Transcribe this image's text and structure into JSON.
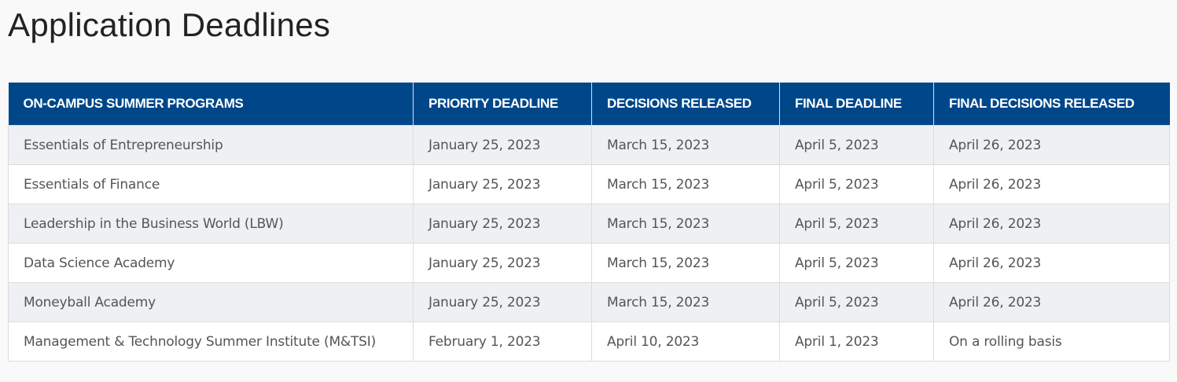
{
  "title": "Application Deadlines",
  "colors": {
    "header_bg": "#00478a",
    "stripe": "#eef0f3"
  },
  "table": {
    "headers": [
      "ON-CAMPUS SUMMER PROGRAMS",
      "PRIORITY DEADLINE",
      "DECISIONS RELEASED",
      "FINAL DEADLINE",
      "FINAL DECISIONS RELEASED"
    ],
    "rows": [
      [
        "Essentials of Entrepreneurship",
        "January 25, 2023",
        "March 15, 2023",
        "April 5, 2023",
        "April 26, 2023"
      ],
      [
        "Essentials of Finance",
        "January 25, 2023",
        "March 15, 2023",
        "April 5, 2023",
        "April 26, 2023"
      ],
      [
        "Leadership in the Business World (LBW)",
        "January 25, 2023",
        "March 15, 2023",
        "April 5, 2023",
        "April 26, 2023"
      ],
      [
        "Data Science Academy",
        "January 25, 2023",
        "March 15, 2023",
        "April 5, 2023",
        "April 26, 2023"
      ],
      [
        "Moneyball Academy",
        "January 25, 2023",
        "March 15, 2023",
        "April 5, 2023",
        "April 26, 2023"
      ],
      [
        "Management & Technology Summer Institute (M&TSI)",
        "February 1, 2023",
        "April 10, 2023",
        "April 1, 2023",
        "On a rolling basis"
      ]
    ]
  }
}
